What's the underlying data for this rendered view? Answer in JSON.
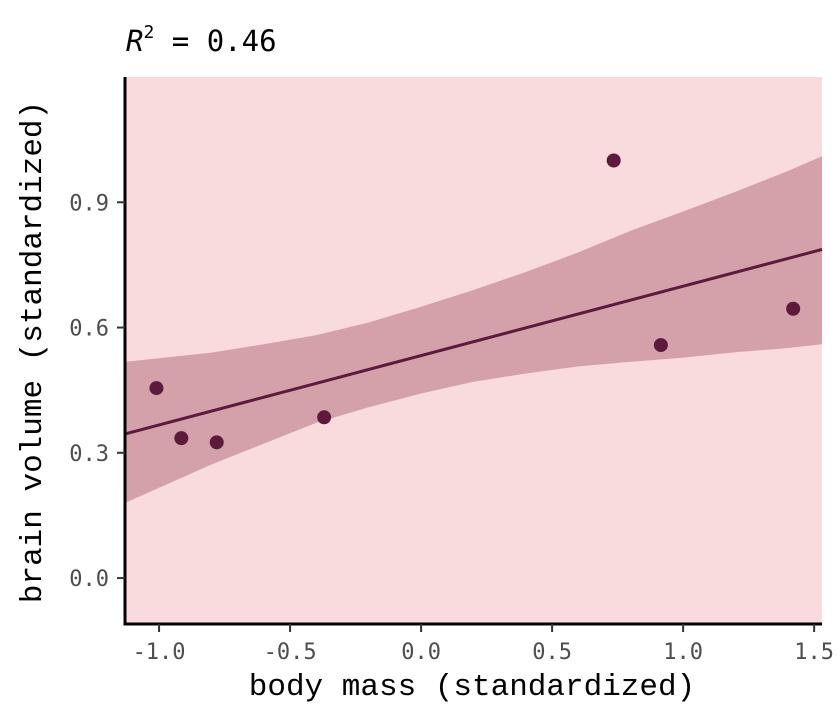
{
  "chart_data": {
    "type": "scatter",
    "title": {
      "prefix": "R",
      "superscript": "2",
      "text": " = 0.46"
    },
    "xlabel": "body mass (standardized)",
    "ylabel": "brain volume (standardized)",
    "xlim": [
      -1.13,
      1.53
    ],
    "ylim": [
      -0.11,
      1.2
    ],
    "x_ticks": [
      -1.0,
      -0.5,
      0.0,
      0.5,
      1.0,
      1.5
    ],
    "x_tick_labels": [
      "-1.0",
      "-0.5",
      "0.0",
      "0.5",
      "1.0",
      "1.5"
    ],
    "y_ticks": [
      0.0,
      0.3,
      0.6,
      0.9
    ],
    "y_tick_labels": [
      "0.0",
      "0.3",
      "0.6",
      "0.9"
    ],
    "grid": false,
    "points": [
      {
        "x": -1.01,
        "y": 0.455
      },
      {
        "x": -0.915,
        "y": 0.335
      },
      {
        "x": -0.78,
        "y": 0.325
      },
      {
        "x": -0.37,
        "y": 0.385
      },
      {
        "x": 0.735,
        "y": 1.0
      },
      {
        "x": 0.915,
        "y": 0.558
      },
      {
        "x": 1.42,
        "y": 0.645
      }
    ],
    "fit_line": [
      {
        "x": -1.13,
        "y": 0.345
      },
      {
        "x": 1.53,
        "y": 0.787
      }
    ],
    "confidence_band": {
      "x": [
        -1.13,
        -0.8,
        -0.6,
        -0.4,
        -0.2,
        0.0,
        0.2,
        0.4,
        0.6,
        0.8,
        1.0,
        1.2,
        1.4,
        1.53
      ],
      "lower": [
        0.18,
        0.272,
        0.322,
        0.372,
        0.409,
        0.442,
        0.47,
        0.49,
        0.507,
        0.518,
        0.528,
        0.541,
        0.551,
        0.56
      ],
      "upper": [
        0.518,
        0.54,
        0.56,
        0.582,
        0.612,
        0.65,
        0.69,
        0.733,
        0.78,
        0.832,
        0.878,
        0.925,
        0.975,
        1.01
      ]
    },
    "colors": {
      "panel_background": "#f9dadd",
      "band_fill": "#d4a1aa",
      "line": "#5e1a3c",
      "points": "#5e1a3c",
      "axis": "#000000",
      "tick_label": "#4d4d4d"
    }
  }
}
